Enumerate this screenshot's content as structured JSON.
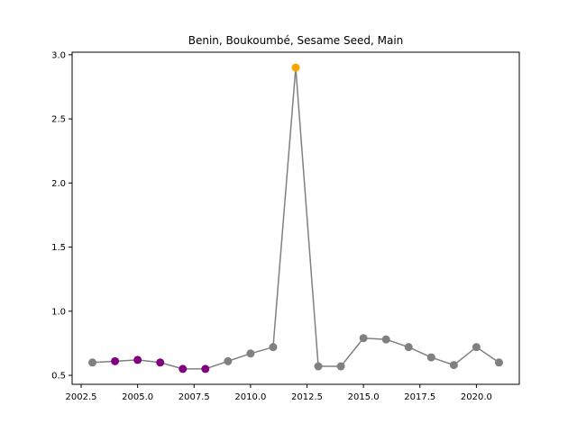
{
  "chart_data": {
    "type": "line",
    "title": "Benin, Boukoumbé, Sesame Seed, Main",
    "xlabel": "",
    "ylabel": "",
    "xlim": [
      2002.1,
      2021.9
    ],
    "ylim": [
      0.43,
      3.02
    ],
    "x_ticks": [
      2002.5,
      2005.0,
      2007.5,
      2010.0,
      2012.5,
      2015.0,
      2017.5,
      2020.0
    ],
    "x_tick_labels": [
      "2002.5",
      "2005.0",
      "2007.5",
      "2010.0",
      "2012.5",
      "2015.0",
      "2017.5",
      "2020.0"
    ],
    "y_ticks": [
      0.5,
      1.0,
      1.5,
      2.0,
      2.5,
      3.0
    ],
    "y_tick_labels": [
      "0.5",
      "1.0",
      "1.5",
      "2.0",
      "2.5",
      "3.0"
    ],
    "grid": false,
    "line_color": "#808080",
    "points": [
      {
        "x": 2003,
        "y": 0.6,
        "color": "#808080"
      },
      {
        "x": 2004,
        "y": 0.61,
        "color": "#800080"
      },
      {
        "x": 2005,
        "y": 0.62,
        "color": "#800080"
      },
      {
        "x": 2006,
        "y": 0.6,
        "color": "#800080"
      },
      {
        "x": 2007,
        "y": 0.55,
        "color": "#800080"
      },
      {
        "x": 2008,
        "y": 0.55,
        "color": "#800080"
      },
      {
        "x": 2009,
        "y": 0.61,
        "color": "#808080"
      },
      {
        "x": 2010,
        "y": 0.67,
        "color": "#808080"
      },
      {
        "x": 2011,
        "y": 0.72,
        "color": "#808080"
      },
      {
        "x": 2012,
        "y": 2.9,
        "color": "#ffa500"
      },
      {
        "x": 2013,
        "y": 0.57,
        "color": "#808080"
      },
      {
        "x": 2014,
        "y": 0.57,
        "color": "#808080"
      },
      {
        "x": 2015,
        "y": 0.79,
        "color": "#808080"
      },
      {
        "x": 2016,
        "y": 0.78,
        "color": "#808080"
      },
      {
        "x": 2017,
        "y": 0.72,
        "color": "#808080"
      },
      {
        "x": 2018,
        "y": 0.64,
        "color": "#808080"
      },
      {
        "x": 2019,
        "y": 0.58,
        "color": "#808080"
      },
      {
        "x": 2020,
        "y": 0.72,
        "color": "#808080"
      },
      {
        "x": 2021,
        "y": 0.6,
        "color": "#808080"
      }
    ]
  }
}
